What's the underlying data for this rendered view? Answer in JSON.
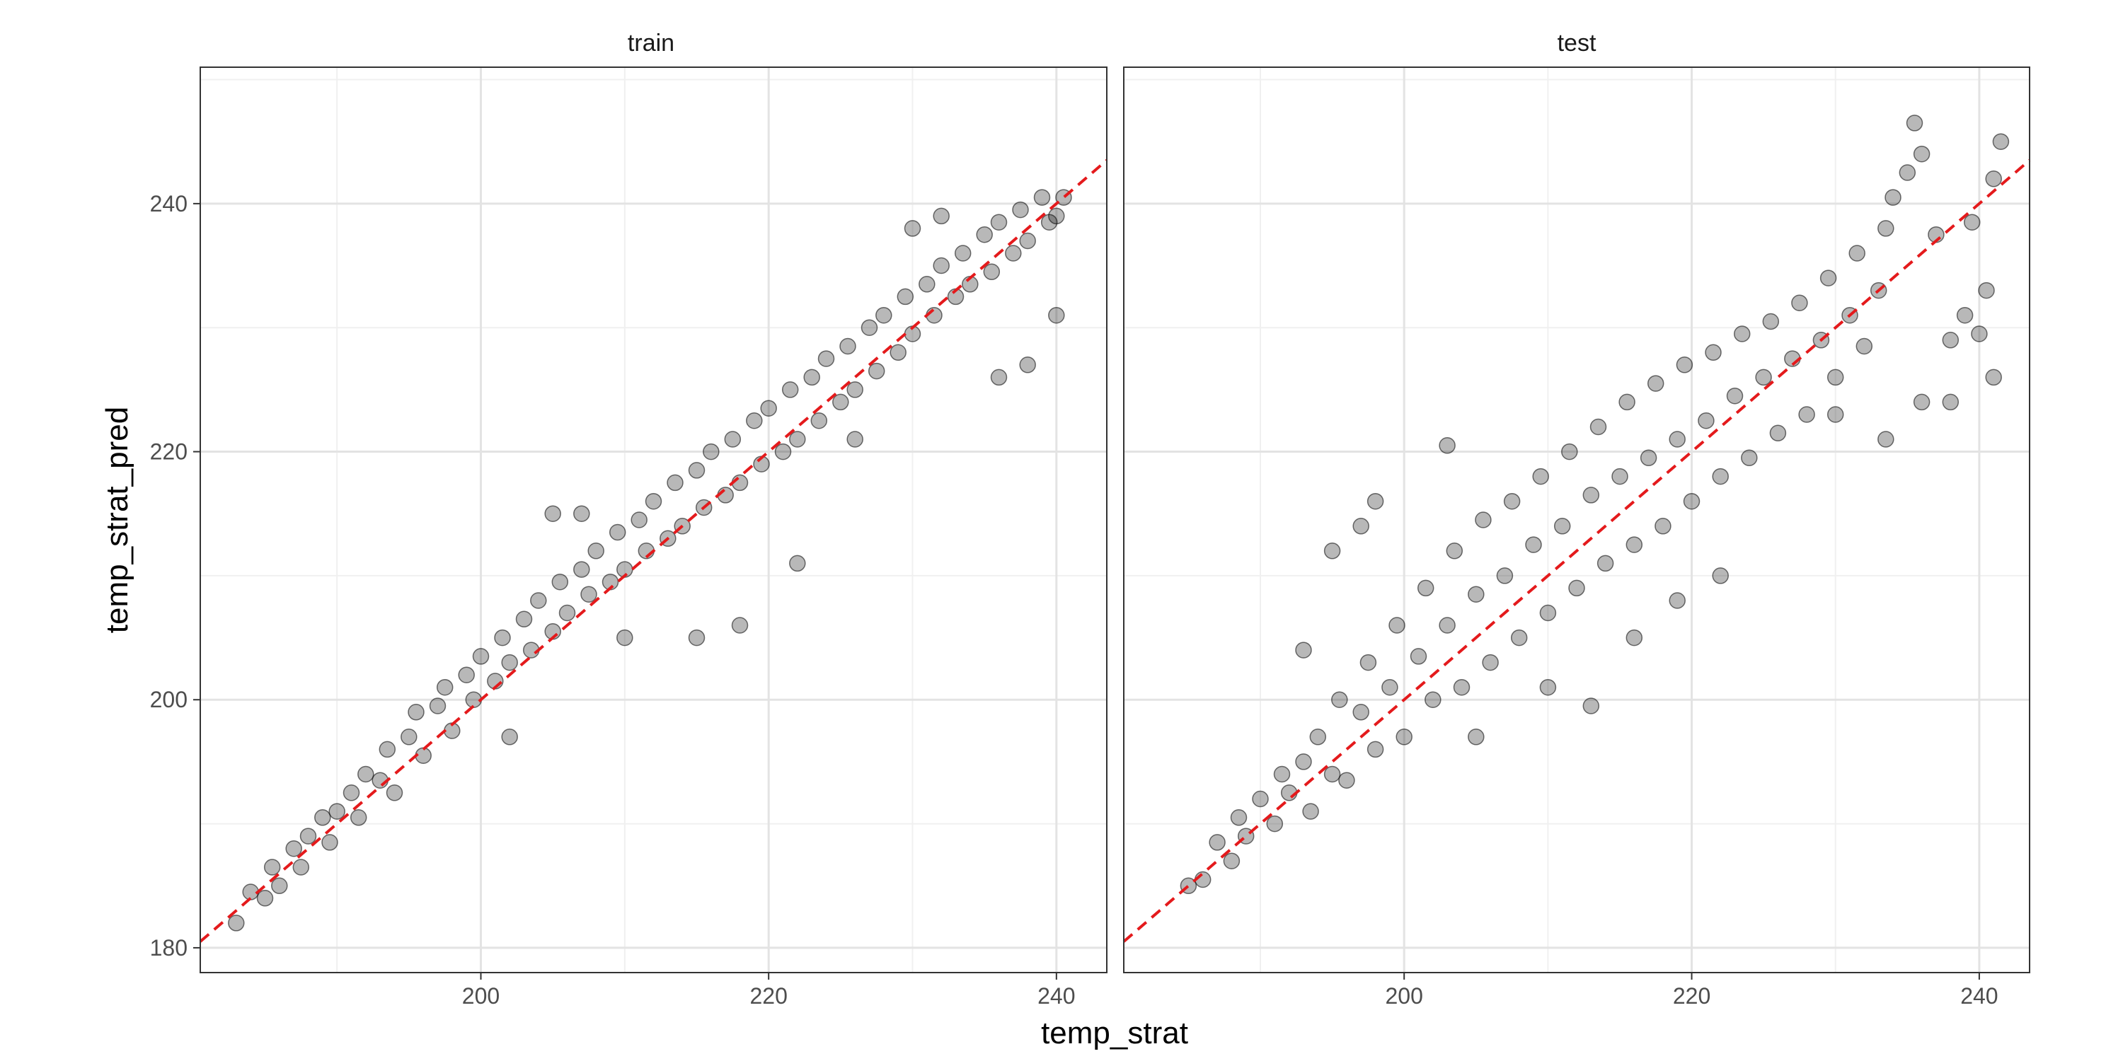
{
  "chart_data": {
    "type": "scatter",
    "xlabel": "temp_strat",
    "ylabel": "temp_strat_pred",
    "xlim": [
      180.5,
      243.5
    ],
    "ylim": [
      178,
      251
    ],
    "x_ticks": [
      200,
      220,
      240
    ],
    "y_ticks": [
      180,
      200,
      220,
      240
    ],
    "grid": true,
    "reference_line": {
      "slope": 1,
      "intercept": 0,
      "style": "dashed",
      "color": "#e41a1c"
    },
    "point_color": "#000000",
    "point_alpha": 0.28,
    "panels": [
      {
        "label": "train",
        "points": [
          [
            183.0,
            182.0
          ],
          [
            184.0,
            184.5
          ],
          [
            185.0,
            184.0
          ],
          [
            185.5,
            186.5
          ],
          [
            186.0,
            185.0
          ],
          [
            187.0,
            188.0
          ],
          [
            187.5,
            186.5
          ],
          [
            188.0,
            189.0
          ],
          [
            189.0,
            190.5
          ],
          [
            189.5,
            188.5
          ],
          [
            190.0,
            191.0
          ],
          [
            191.0,
            192.5
          ],
          [
            191.5,
            190.5
          ],
          [
            192.0,
            194.0
          ],
          [
            193.0,
            193.5
          ],
          [
            193.5,
            196.0
          ],
          [
            194.0,
            192.5
          ],
          [
            195.0,
            197.0
          ],
          [
            195.5,
            199.0
          ],
          [
            196.0,
            195.5
          ],
          [
            197.0,
            199.5
          ],
          [
            197.5,
            201.0
          ],
          [
            198.0,
            197.5
          ],
          [
            199.0,
            202.0
          ],
          [
            199.5,
            200.0
          ],
          [
            200.0,
            203.5
          ],
          [
            201.0,
            201.5
          ],
          [
            201.5,
            205.0
          ],
          [
            202.0,
            203.0
          ],
          [
            203.0,
            206.5
          ],
          [
            203.5,
            204.0
          ],
          [
            204.0,
            208.0
          ],
          [
            205.0,
            205.5
          ],
          [
            205.5,
            209.5
          ],
          [
            206.0,
            207.0
          ],
          [
            207.0,
            210.5
          ],
          [
            207.5,
            208.5
          ],
          [
            208.0,
            212.0
          ],
          [
            209.0,
            209.5
          ],
          [
            209.5,
            213.5
          ],
          [
            210.0,
            210.5
          ],
          [
            211.0,
            214.5
          ],
          [
            211.5,
            212.0
          ],
          [
            212.0,
            216.0
          ],
          [
            213.0,
            213.0
          ],
          [
            213.5,
            217.5
          ],
          [
            214.0,
            214.0
          ],
          [
            215.0,
            218.5
          ],
          [
            215.5,
            215.5
          ],
          [
            216.0,
            220.0
          ],
          [
            217.0,
            216.5
          ],
          [
            217.5,
            221.0
          ],
          [
            218.0,
            217.5
          ],
          [
            219.0,
            222.5
          ],
          [
            219.5,
            219.0
          ],
          [
            220.0,
            223.5
          ],
          [
            221.0,
            220.0
          ],
          [
            221.5,
            225.0
          ],
          [
            222.0,
            221.0
          ],
          [
            223.0,
            226.0
          ],
          [
            223.5,
            222.5
          ],
          [
            224.0,
            227.5
          ],
          [
            225.0,
            224.0
          ],
          [
            225.5,
            228.5
          ],
          [
            226.0,
            225.0
          ],
          [
            227.0,
            230.0
          ],
          [
            227.5,
            226.5
          ],
          [
            228.0,
            231.0
          ],
          [
            229.0,
            228.0
          ],
          [
            229.5,
            232.5
          ],
          [
            230.0,
            229.5
          ],
          [
            231.0,
            233.5
          ],
          [
            231.5,
            231.0
          ],
          [
            232.0,
            235.0
          ],
          [
            233.0,
            232.5
          ],
          [
            233.5,
            236.0
          ],
          [
            234.0,
            233.5
          ],
          [
            235.0,
            237.5
          ],
          [
            235.5,
            234.5
          ],
          [
            236.0,
            238.5
          ],
          [
            237.0,
            236.0
          ],
          [
            237.5,
            239.5
          ],
          [
            238.0,
            237.0
          ],
          [
            239.0,
            240.5
          ],
          [
            239.5,
            238.5
          ],
          [
            240.0,
            239.0
          ],
          [
            240.5,
            240.5
          ],
          [
            238.0,
            227.0
          ],
          [
            236.0,
            226.0
          ],
          [
            240.0,
            231.0
          ],
          [
            222.0,
            211.0
          ],
          [
            218.0,
            206.0
          ],
          [
            215.0,
            205.0
          ],
          [
            205.0,
            215.0
          ],
          [
            207.0,
            215.0
          ],
          [
            202.0,
            197.0
          ],
          [
            230.0,
            238.0
          ],
          [
            232.0,
            239.0
          ],
          [
            226.0,
            221.0
          ],
          [
            210.0,
            205.0
          ]
        ]
      },
      {
        "label": "test",
        "points": [
          [
            185.0,
            185.0
          ],
          [
            186.0,
            185.5
          ],
          [
            187.0,
            188.5
          ],
          [
            188.0,
            187.0
          ],
          [
            188.5,
            190.5
          ],
          [
            189.0,
            189.0
          ],
          [
            190.0,
            192.0
          ],
          [
            191.0,
            190.0
          ],
          [
            191.5,
            194.0
          ],
          [
            192.0,
            192.5
          ],
          [
            193.0,
            195.0
          ],
          [
            193.5,
            191.0
          ],
          [
            194.0,
            197.0
          ],
          [
            195.0,
            194.0
          ],
          [
            195.5,
            200.0
          ],
          [
            196.0,
            193.5
          ],
          [
            197.0,
            199.0
          ],
          [
            197.5,
            203.0
          ],
          [
            198.0,
            196.0
          ],
          [
            199.0,
            201.0
          ],
          [
            199.5,
            206.0
          ],
          [
            200.0,
            197.0
          ],
          [
            201.0,
            203.5
          ],
          [
            201.5,
            209.0
          ],
          [
            202.0,
            200.0
          ],
          [
            203.0,
            206.0
          ],
          [
            203.5,
            212.0
          ],
          [
            204.0,
            201.0
          ],
          [
            205.0,
            208.5
          ],
          [
            205.5,
            214.5
          ],
          [
            206.0,
            203.0
          ],
          [
            207.0,
            210.0
          ],
          [
            207.5,
            216.0
          ],
          [
            208.0,
            205.0
          ],
          [
            209.0,
            212.5
          ],
          [
            209.5,
            218.0
          ],
          [
            210.0,
            207.0
          ],
          [
            211.0,
            214.0
          ],
          [
            211.5,
            220.0
          ],
          [
            212.0,
            209.0
          ],
          [
            213.0,
            216.5
          ],
          [
            213.5,
            222.0
          ],
          [
            214.0,
            211.0
          ],
          [
            215.0,
            218.0
          ],
          [
            215.5,
            224.0
          ],
          [
            216.0,
            212.5
          ],
          [
            217.0,
            219.5
          ],
          [
            217.5,
            225.5
          ],
          [
            218.0,
            214.0
          ],
          [
            219.0,
            221.0
          ],
          [
            219.5,
            227.0
          ],
          [
            220.0,
            216.0
          ],
          [
            221.0,
            222.5
          ],
          [
            221.5,
            228.0
          ],
          [
            222.0,
            218.0
          ],
          [
            223.0,
            224.5
          ],
          [
            223.5,
            229.5
          ],
          [
            224.0,
            219.5
          ],
          [
            225.0,
            226.0
          ],
          [
            225.5,
            230.5
          ],
          [
            226.0,
            221.5
          ],
          [
            227.0,
            227.5
          ],
          [
            227.5,
            232.0
          ],
          [
            228.0,
            223.0
          ],
          [
            229.0,
            229.0
          ],
          [
            229.5,
            234.0
          ],
          [
            230.0,
            226.0
          ],
          [
            231.0,
            231.0
          ],
          [
            231.5,
            236.0
          ],
          [
            232.0,
            228.5
          ],
          [
            233.0,
            233.0
          ],
          [
            233.5,
            238.0
          ],
          [
            234.0,
            240.5
          ],
          [
            235.0,
            242.5
          ],
          [
            235.5,
            246.5
          ],
          [
            236.0,
            244.0
          ],
          [
            237.0,
            237.5
          ],
          [
            238.0,
            229.0
          ],
          [
            239.0,
            231.0
          ],
          [
            240.0,
            229.5
          ],
          [
            241.0,
            226.0
          ],
          [
            240.5,
            233.0
          ],
          [
            239.5,
            238.5
          ],
          [
            241.0,
            242.0
          ],
          [
            241.5,
            245.0
          ],
          [
            238.0,
            224.0
          ],
          [
            236.0,
            224.0
          ],
          [
            233.5,
            221.0
          ],
          [
            230.0,
            223.0
          ],
          [
            195.0,
            212.0
          ],
          [
            198.0,
            216.0
          ],
          [
            203.0,
            220.5
          ],
          [
            197.0,
            214.0
          ],
          [
            205.0,
            197.0
          ],
          [
            210.0,
            201.0
          ],
          [
            213.0,
            199.5
          ],
          [
            216.0,
            205.0
          ],
          [
            219.0,
            208.0
          ],
          [
            222.0,
            210.0
          ],
          [
            193.0,
            204.0
          ]
        ]
      }
    ]
  }
}
